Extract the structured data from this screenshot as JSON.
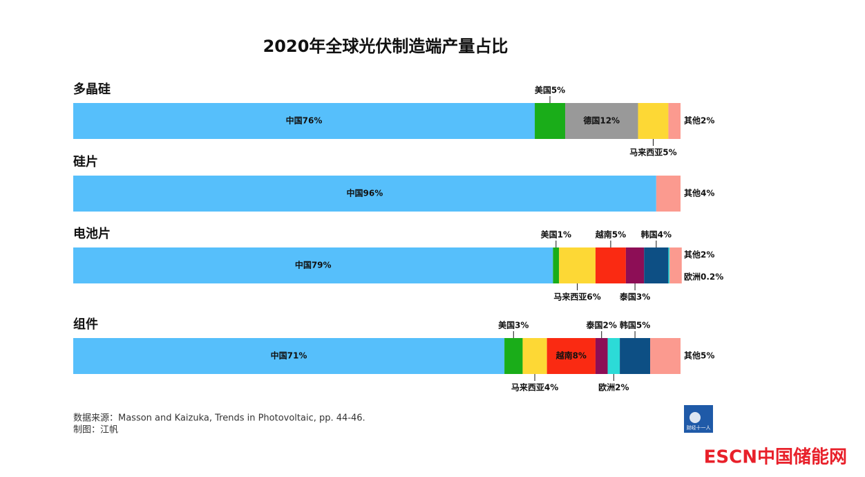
{
  "chart_data": {
    "type": "stacked-bar",
    "title": "2020年全球光伏制造端产量占比",
    "xlim": [
      0,
      100
    ],
    "rows": [
      {
        "label": "多晶硅",
        "segments": [
          {
            "value": 76,
            "value_label": "中国76%",
            "color": "#56bffb"
          },
          {
            "value": 5,
            "value_label": "美国5%",
            "color": "#1aad19"
          },
          {
            "value": 12,
            "value_label": "德国12%",
            "color": "#999999"
          },
          {
            "value": 5,
            "value_label": "马来西亚5%",
            "color": "#fdd835"
          },
          {
            "value": 2,
            "value_label": "其他2%",
            "color": "#fb9a8f"
          }
        ]
      },
      {
        "label": "硅片",
        "segments": [
          {
            "value": 96,
            "value_label": "中国96%",
            "color": "#56bffb"
          },
          {
            "value": 4,
            "value_label": "其他4%",
            "color": "#fb9a8f"
          }
        ]
      },
      {
        "label": "电池片",
        "segments": [
          {
            "value": 79,
            "value_label": "中国79%",
            "color": "#56bffb"
          },
          {
            "value": 1,
            "value_label": "美国1%",
            "color": "#1aad19"
          },
          {
            "value": 6,
            "value_label": "马来西亚6%",
            "color": "#fdd835"
          },
          {
            "value": 5,
            "value_label": "越南5%",
            "color": "#fa2a12"
          },
          {
            "value": 3,
            "value_label": "泰国3%",
            "color": "#8d0e56"
          },
          {
            "value": 4,
            "value_label": "韩国4%",
            "color": "#0d4f84"
          },
          {
            "value": 0.2,
            "value_label": "欧洲0.2%",
            "color": "#2cdbd7"
          },
          {
            "value": 2,
            "value_label": "其他2%",
            "color": "#fb9a8f"
          }
        ]
      },
      {
        "label": "组件",
        "segments": [
          {
            "value": 71,
            "value_label": "中国71%",
            "color": "#56bffb"
          },
          {
            "value": 3,
            "value_label": "美国3%",
            "color": "#1aad19"
          },
          {
            "value": 4,
            "value_label": "马来西亚4%",
            "color": "#fdd835"
          },
          {
            "value": 8,
            "value_label": "越南8%",
            "color": "#fa2a12"
          },
          {
            "value": 2,
            "value_label": "泰国2%",
            "color": "#8d0e56"
          },
          {
            "value": 2,
            "value_label": "欧洲2%",
            "color": "#2cdbd7"
          },
          {
            "value": 5,
            "value_label": "韩国5%",
            "color": "#0d4f84"
          },
          {
            "value": 5,
            "value_label": "其他5%",
            "color": "#fb9a8f"
          }
        ]
      }
    ],
    "source": "数据来源：Masson and Kaizuka, Trends in Photovoltaic, pp. 44-46.",
    "credit": "制图：江帆"
  },
  "logo_text": "财经十一人",
  "watermark": "ESCN中国储能网"
}
